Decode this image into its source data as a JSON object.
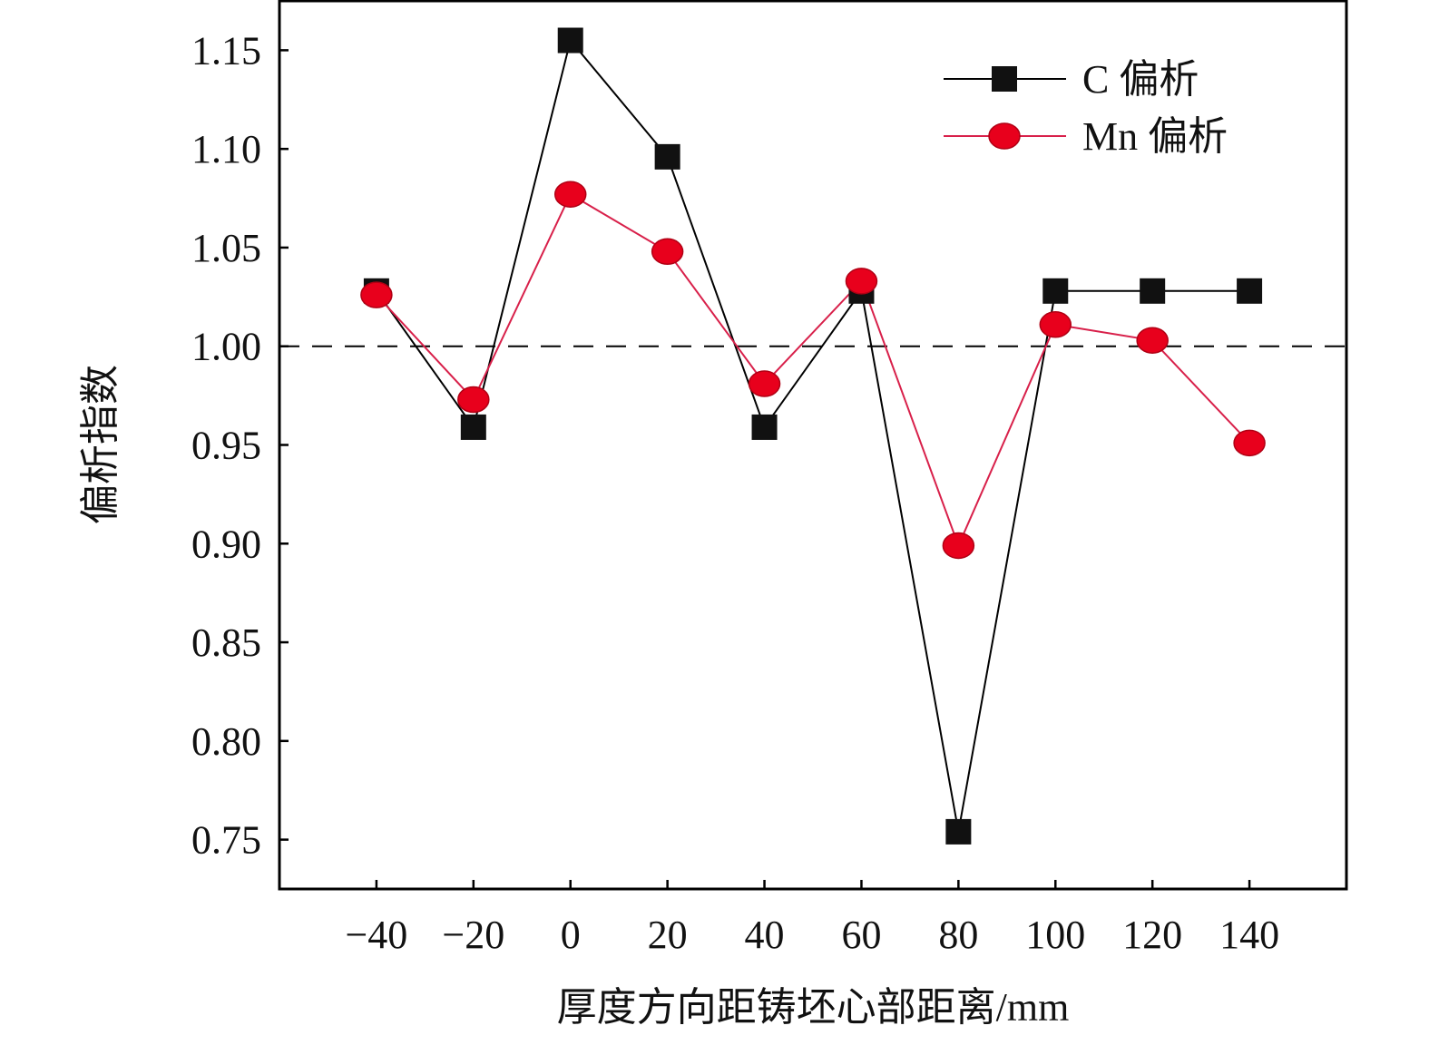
{
  "chart_data": {
    "type": "line",
    "title": "",
    "xlabel": "厚度方向距铸坯心部距离/mm",
    "ylabel": "偏析指数",
    "xlim": [
      -60,
      160
    ],
    "ylim": [
      0.725,
      1.175
    ],
    "x": [
      -40,
      -20,
      0,
      20,
      40,
      60,
      80,
      100,
      120,
      140
    ],
    "xticks": [
      "−40",
      "−20",
      "0",
      "20",
      "40",
      "60",
      "80",
      "100",
      "120",
      "140"
    ],
    "yticks": [
      1.15,
      1.1,
      1.05,
      1.0,
      0.95,
      0.9,
      0.85,
      0.8,
      0.75
    ],
    "yticklabels": [
      "1.15",
      "1.10",
      "1.05",
      "1.00",
      "0.95",
      "0.90",
      "0.85",
      "0.80",
      "0.75"
    ],
    "grid": false,
    "legend": "top-right",
    "reference_line": {
      "y": 1.0,
      "style": "dashed",
      "color": "#000000"
    },
    "series": [
      {
        "name": "C 偏析",
        "marker": "square",
        "color": "#000000",
        "line_color": "#000000",
        "values": [
          1.028,
          0.959,
          1.155,
          1.096,
          0.959,
          1.028,
          0.754,
          1.028,
          1.028,
          1.028
        ]
      },
      {
        "name": "Mn 偏析",
        "marker": "circle",
        "color": "#e8001c",
        "line_color": "#d8204a",
        "values": [
          1.026,
          0.973,
          1.077,
          1.048,
          0.981,
          1.033,
          0.899,
          1.011,
          1.003,
          0.951
        ]
      }
    ]
  }
}
